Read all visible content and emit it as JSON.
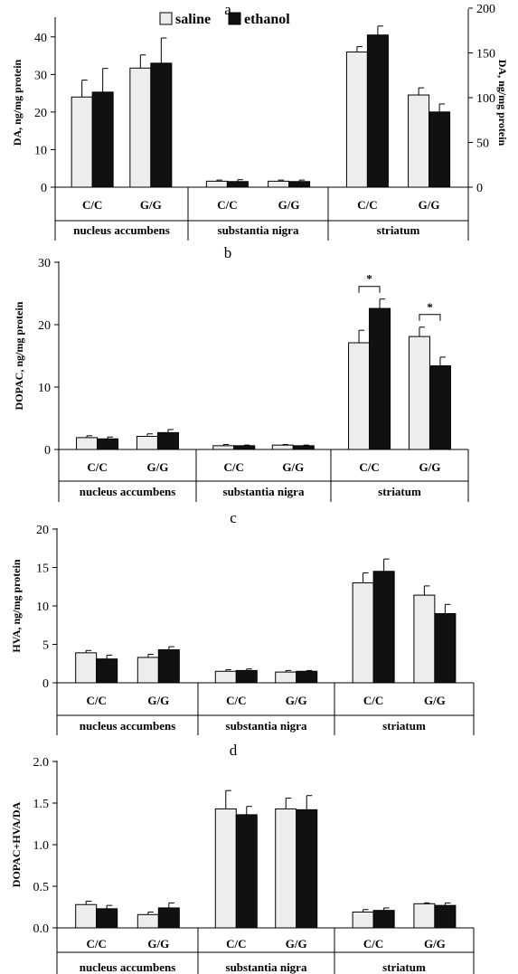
{
  "legend": {
    "saline": "saline",
    "ethanol": "ethanol"
  },
  "colors": {
    "saline": "#ededed",
    "ethanol": "#111111",
    "axis": "#000000"
  },
  "chart_data": [
    {
      "type": "bar",
      "panel": "a",
      "ylabel": "DA, ng/mg protein",
      "ylabel_right": "DA, ng/mg protein",
      "ylim": [
        0,
        45
      ],
      "yticks": [
        "0",
        "10",
        "20",
        "30",
        "40"
      ],
      "ylim_right": [
        0,
        200
      ],
      "yticks_right": [
        "0",
        "50",
        "100",
        "150",
        "200"
      ],
      "right_axis_groups": [
        "striatum"
      ],
      "groups": [
        "nucleus accumbens",
        "substantia nigra",
        "striatum"
      ],
      "categories": [
        "C/C",
        "G/G"
      ],
      "series": [
        {
          "name": "saline",
          "values": [
            [
              24,
              31.7
            ],
            [
              1.6,
              1.6
            ],
            [
              151,
              103
            ]
          ],
          "errors": [
            [
              4.5,
              3.5
            ],
            [
              0.3,
              0.3
            ],
            [
              6,
              8
            ]
          ]
        },
        {
          "name": "ethanol",
          "values": [
            [
              25.3,
              33
            ],
            [
              1.5,
              1.5
            ],
            [
              170,
              84
            ]
          ],
          "errors": [
            [
              6.3,
              6.7
            ],
            [
              0.5,
              0.4
            ],
            [
              10,
              9
            ]
          ]
        }
      ]
    },
    {
      "type": "bar",
      "panel": "b",
      "ylabel": "DOPAC, ng/mg protein",
      "ylim": [
        0,
        30
      ],
      "yticks": [
        "0",
        "10",
        "20",
        "30"
      ],
      "groups": [
        "nucleus accumbens",
        "substantia nigra",
        "striatum"
      ],
      "categories": [
        "C/C",
        "G/G"
      ],
      "series": [
        {
          "name": "saline",
          "values": [
            [
              1.9,
              2.1
            ],
            [
              0.6,
              0.7
            ],
            [
              17.1,
              18.1
            ]
          ],
          "errors": [
            [
              0.3,
              0.4
            ],
            [
              0.2,
              0.1
            ],
            [
              2.0,
              1.5
            ]
          ]
        },
        {
          "name": "ethanol",
          "values": [
            [
              1.7,
              2.7
            ],
            [
              0.6,
              0.6
            ],
            [
              22.6,
              13.4
            ]
          ],
          "errors": [
            [
              0.3,
              0.5
            ],
            [
              0.1,
              0.1
            ],
            [
              1.5,
              1.4
            ]
          ]
        }
      ],
      "annotations": [
        "*",
        "*"
      ],
      "significance_groups": [
        "striatum"
      ]
    },
    {
      "type": "bar",
      "panel": "c",
      "ylabel": "HVA, ng/mg protein",
      "ylim": [
        0,
        20
      ],
      "yticks": [
        "0",
        "5",
        "10",
        "15",
        "20"
      ],
      "groups": [
        "nucleus accumbens",
        "substantia nigra",
        "striatum"
      ],
      "categories": [
        "C/C",
        "G/G"
      ],
      "series": [
        {
          "name": "saline",
          "values": [
            [
              3.9,
              3.3
            ],
            [
              1.5,
              1.4
            ],
            [
              13.0,
              11.4
            ]
          ],
          "errors": [
            [
              0.3,
              0.4
            ],
            [
              0.2,
              0.2
            ],
            [
              1.3,
              1.2
            ]
          ]
        },
        {
          "name": "ethanol",
          "values": [
            [
              3.1,
              4.3
            ],
            [
              1.6,
              1.5
            ],
            [
              14.5,
              9.0
            ]
          ],
          "errors": [
            [
              0.5,
              0.4
            ],
            [
              0.2,
              0.1
            ],
            [
              1.6,
              1.2
            ]
          ]
        }
      ]
    },
    {
      "type": "bar",
      "panel": "d",
      "ylabel": "DOPAC+HVA/DA",
      "ylim": [
        0,
        2.0
      ],
      "yticks": [
        "0.0",
        "0.5",
        "1.0",
        "1.5",
        "2.0"
      ],
      "groups": [
        "nucleus accumbens",
        "substantia nigra",
        "striatum"
      ],
      "categories": [
        "C/C",
        "G/G"
      ],
      "series": [
        {
          "name": "saline",
          "values": [
            [
              0.28,
              0.16
            ],
            [
              1.43,
              1.43
            ],
            [
              0.19,
              0.29
            ]
          ],
          "errors": [
            [
              0.04,
              0.03
            ],
            [
              0.22,
              0.13
            ],
            [
              0.03,
              0.01
            ]
          ]
        },
        {
          "name": "ethanol",
          "values": [
            [
              0.23,
              0.24
            ],
            [
              1.36,
              1.42
            ],
            [
              0.21,
              0.27
            ]
          ],
          "errors": [
            [
              0.04,
              0.06
            ],
            [
              0.1,
              0.17
            ],
            [
              0.03,
              0.03
            ]
          ]
        }
      ]
    }
  ]
}
